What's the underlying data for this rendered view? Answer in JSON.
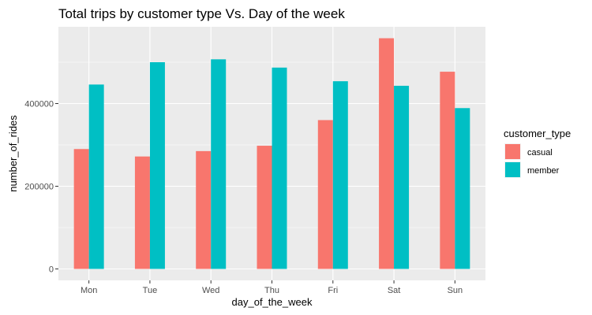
{
  "chart_data": {
    "type": "bar",
    "title": "Total trips by customer type Vs. Day of the week",
    "xlabel": "day_of_the_week",
    "ylabel": "number_of_rides",
    "categories": [
      "Mon",
      "Tue",
      "Wed",
      "Thu",
      "Fri",
      "Sat",
      "Sun"
    ],
    "series": [
      {
        "name": "casual",
        "color": "#F8766D",
        "values": [
          290000,
          272000,
          285000,
          298000,
          360000,
          558000,
          477000
        ]
      },
      {
        "name": "member",
        "color": "#00BFC4",
        "values": [
          446000,
          500000,
          507000,
          487000,
          454000,
          443000,
          389000
        ]
      }
    ],
    "ylim": [
      0,
      590000
    ],
    "yticks": [
      0,
      200000,
      400000
    ],
    "ytick_labels": [
      "0",
      "200000",
      "400000"
    ],
    "grid": true,
    "legend": {
      "title": "customer_type",
      "position": "right"
    },
    "panel_background": "#EBEBEB",
    "grid_color": "#FFFFFF"
  }
}
